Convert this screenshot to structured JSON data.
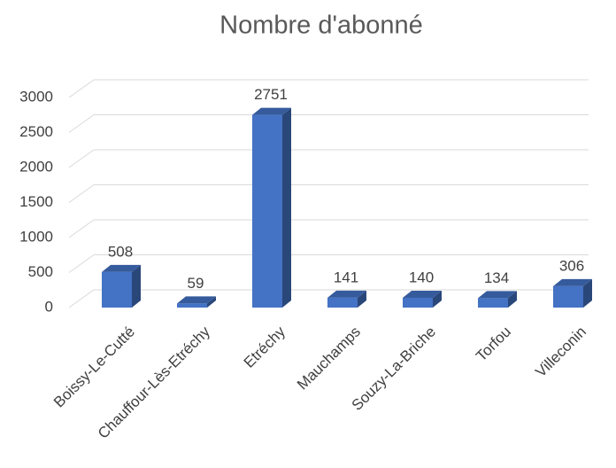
{
  "chart_data": {
    "type": "bar3d",
    "title": "Nombre d'abonné",
    "categories": [
      "Boissy-Le-Cutté",
      "Chauffour-Lès-Etréchy",
      "Etréchy",
      "Mauchamps",
      "Souzy-La-Briche",
      "Torfou",
      "Villeconin"
    ],
    "values": [
      508,
      59,
      2751,
      141,
      140,
      134,
      306
    ],
    "color": "#4472c4",
    "ylim": [
      0,
      3000
    ],
    "yticks": [
      0,
      500,
      1000,
      1500,
      2000,
      2500,
      3000
    ],
    "grid": true
  }
}
